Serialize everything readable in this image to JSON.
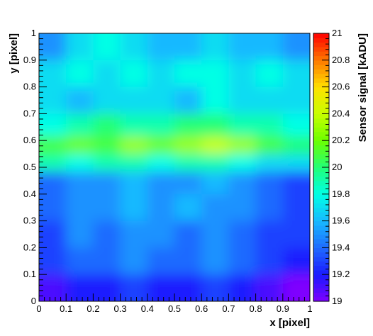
{
  "chart_data": {
    "type": "heatmap",
    "xlabel": "x [pixel]",
    "ylabel": "y [pixel]",
    "zlabel": "Sensor signal [kADU]",
    "xlim": [
      0,
      1
    ],
    "ylim": [
      0,
      1
    ],
    "zlim": [
      19,
      21
    ],
    "x_ticks": [
      "0",
      "0.1",
      "0.2",
      "0.3",
      "0.4",
      "0.5",
      "0.6",
      "0.7",
      "0.8",
      "0.9",
      "1"
    ],
    "y_ticks": [
      "0",
      "0.1",
      "0.2",
      "0.3",
      "0.4",
      "0.5",
      "0.6",
      "0.7",
      "0.8",
      "0.9",
      "1"
    ],
    "z_ticks": [
      "19",
      "19.2",
      "19.4",
      "19.6",
      "19.8",
      "20",
      "20.2",
      "20.4",
      "20.6",
      "20.8",
      "21"
    ],
    "colormap": [
      "#7f00ff",
      "#1a1aff",
      "#1f6bff",
      "#17b9ff",
      "#00ffe5",
      "#22ff77",
      "#6cff00",
      "#c8ff00",
      "#ffe000",
      "#ff7800",
      "#ff0000"
    ],
    "rows_y": [
      0.95,
      0.85,
      0.75,
      0.65,
      0.58,
      0.52,
      0.45,
      0.35,
      0.25,
      0.15,
      0.05
    ],
    "cols_x": [
      0.05,
      0.15,
      0.25,
      0.35,
      0.45,
      0.55,
      0.65,
      0.75,
      0.85,
      0.95
    ],
    "z": [
      [
        19.5,
        19.7,
        19.8,
        19.7,
        19.6,
        19.6,
        19.7,
        19.6,
        19.6,
        19.5
      ],
      [
        19.7,
        19.8,
        19.7,
        19.8,
        19.7,
        19.8,
        19.8,
        19.7,
        19.8,
        19.7
      ],
      [
        19.7,
        19.6,
        19.7,
        19.7,
        19.7,
        19.6,
        19.8,
        19.7,
        19.7,
        19.7
      ],
      [
        19.8,
        19.9,
        20.0,
        19.9,
        19.9,
        20.0,
        20.0,
        19.9,
        19.9,
        19.8
      ],
      [
        20.1,
        20.2,
        20.1,
        20.3,
        20.2,
        20.3,
        20.4,
        20.3,
        20.1,
        20.0
      ],
      [
        19.9,
        19.8,
        19.9,
        19.9,
        19.8,
        19.9,
        19.9,
        19.8,
        19.7,
        19.7
      ],
      [
        19.4,
        19.5,
        19.5,
        19.6,
        19.5,
        19.5,
        19.6,
        19.5,
        19.4,
        19.3
      ],
      [
        19.4,
        19.5,
        19.5,
        19.6,
        19.5,
        19.6,
        19.5,
        19.5,
        19.4,
        19.3
      ],
      [
        19.3,
        19.5,
        19.4,
        19.5,
        19.5,
        19.4,
        19.5,
        19.4,
        19.3,
        19.3
      ],
      [
        19.3,
        19.4,
        19.4,
        19.5,
        19.4,
        19.4,
        19.5,
        19.4,
        19.3,
        19.2
      ],
      [
        19.1,
        19.2,
        19.2,
        19.3,
        19.2,
        19.2,
        19.3,
        19.2,
        19.1,
        19.0
      ]
    ]
  }
}
